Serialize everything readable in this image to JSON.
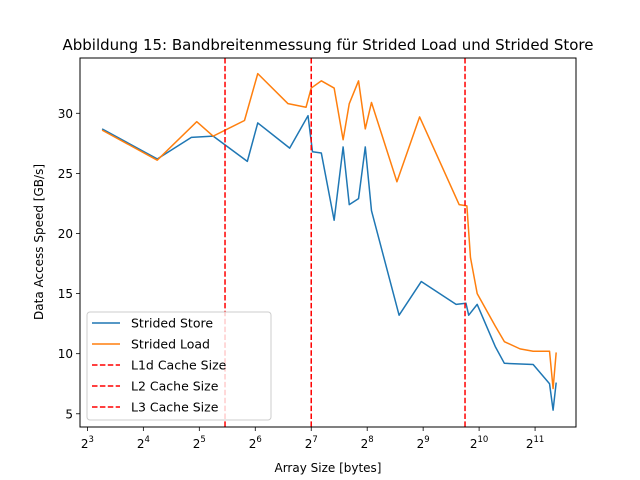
{
  "chart_data": {
    "type": "line",
    "title": "Abbildung 15: Bandbreitenmessung für Strided Load und Strided Store",
    "xlabel": "Array Size [bytes]",
    "ylabel": "Data Access Speed [GB/s]",
    "xscale": "log2",
    "xlim": [
      7.3,
      3400
    ],
    "ylim": [
      3.9,
      34.6
    ],
    "grid": false,
    "legend_position": "lower-left",
    "x_ticks": [
      {
        "value": 8,
        "base": "2",
        "exp": "3"
      },
      {
        "value": 16,
        "base": "2",
        "exp": "4"
      },
      {
        "value": 32,
        "base": "2",
        "exp": "5"
      },
      {
        "value": 64,
        "base": "2",
        "exp": "6"
      },
      {
        "value": 128,
        "base": "2",
        "exp": "7"
      },
      {
        "value": 256,
        "base": "2",
        "exp": "8"
      },
      {
        "value": 512,
        "base": "2",
        "exp": "9"
      },
      {
        "value": 1024,
        "base": "2",
        "exp": "10"
      },
      {
        "value": 2048,
        "base": "2",
        "exp": "11"
      }
    ],
    "y_ticks": [
      5,
      10,
      15,
      20,
      25,
      30
    ],
    "series": [
      {
        "name": "Strided Store",
        "color": "#1f77b4",
        "points": [
          [
            9.6,
            28.7
          ],
          [
            19,
            26.2
          ],
          [
            29,
            28.0
          ],
          [
            38,
            28.1
          ],
          [
            58,
            26.0
          ],
          [
            66,
            29.2
          ],
          [
            98,
            27.1
          ],
          [
            123,
            29.8
          ],
          [
            130,
            26.8
          ],
          [
            145,
            26.7
          ],
          [
            170,
            21.1
          ],
          [
            190,
            27.2
          ],
          [
            205,
            22.4
          ],
          [
            230,
            22.9
          ],
          [
            250,
            27.2
          ],
          [
            270,
            21.9
          ],
          [
            380,
            13.2
          ],
          [
            500,
            16.0
          ],
          [
            770,
            14.1
          ],
          [
            870,
            14.2
          ],
          [
            900,
            13.2
          ],
          [
            1000,
            14.1
          ],
          [
            1250,
            10.6
          ],
          [
            1400,
            9.2
          ],
          [
            2000,
            9.1
          ],
          [
            2450,
            7.5
          ],
          [
            2560,
            5.3
          ],
          [
            2660,
            7.6
          ]
        ]
      },
      {
        "name": "Strided Load",
        "color": "#ff7f0e",
        "points": [
          [
            9.6,
            28.6
          ],
          [
            19,
            26.1
          ],
          [
            31,
            29.3
          ],
          [
            38,
            28.1
          ],
          [
            56,
            29.4
          ],
          [
            66,
            33.3
          ],
          [
            96,
            30.8
          ],
          [
            120,
            30.5
          ],
          [
            128,
            32.1
          ],
          [
            145,
            32.7
          ],
          [
            170,
            32.1
          ],
          [
            190,
            27.8
          ],
          [
            205,
            30.8
          ],
          [
            230,
            32.7
          ],
          [
            250,
            28.7
          ],
          [
            270,
            30.9
          ],
          [
            370,
            24.3
          ],
          [
            490,
            29.7
          ],
          [
            800,
            22.4
          ],
          [
            880,
            22.3
          ],
          [
            920,
            18.0
          ],
          [
            1000,
            15.0
          ],
          [
            1250,
            12.3
          ],
          [
            1400,
            11.0
          ],
          [
            1700,
            10.4
          ],
          [
            2000,
            10.2
          ],
          [
            2450,
            10.2
          ],
          [
            2560,
            7.1
          ],
          [
            2660,
            10.1
          ]
        ]
      }
    ],
    "cache_lines": [
      {
        "name": "L1d Cache Size",
        "x": 44,
        "color": "#ff0000"
      },
      {
        "name": "L2 Cache Size",
        "x": 128,
        "color": "#ff0000"
      },
      {
        "name": "L3 Cache Size",
        "x": 860,
        "color": "#ff0000"
      }
    ]
  }
}
